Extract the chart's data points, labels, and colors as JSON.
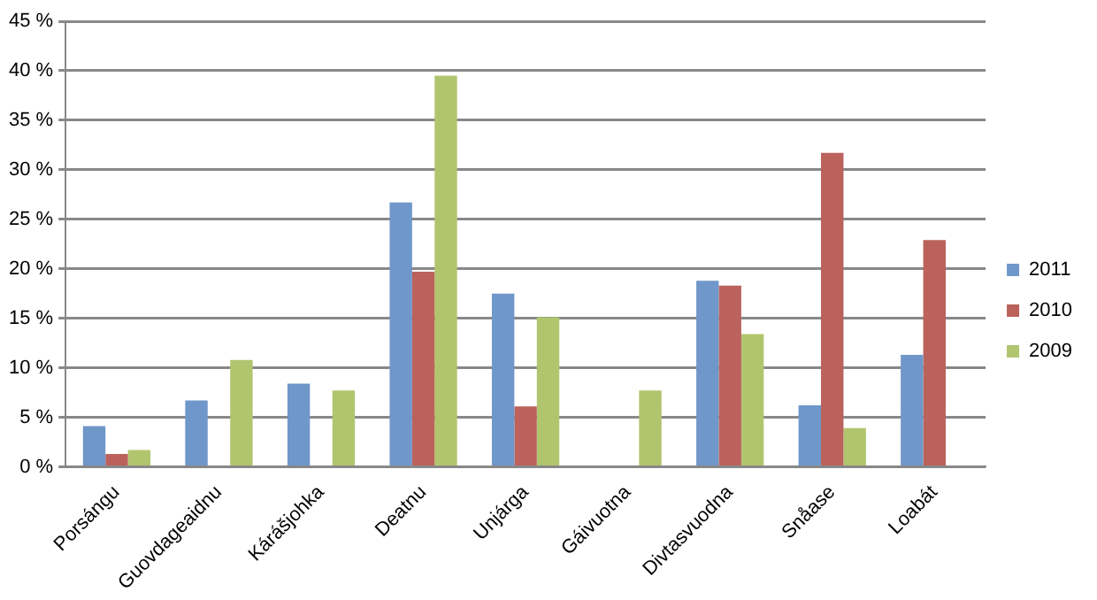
{
  "chart_data": {
    "type": "bar",
    "categories": [
      "Porsángu",
      "Guovdageaidnu",
      "Kárášjohka",
      "Deatnu",
      "Unjárga",
      "Gáivuotna",
      "Divtasvuodna",
      "Snåase",
      "Loabát"
    ],
    "series": [
      {
        "name": "2011",
        "color": "#7097c9",
        "values": [
          4.1,
          6.7,
          8.4,
          26.7,
          17.5,
          null,
          18.8,
          6.2,
          11.3
        ]
      },
      {
        "name": "2010",
        "color": "#bb625c",
        "values": [
          1.3,
          null,
          null,
          19.7,
          6.1,
          null,
          18.3,
          31.7,
          22.9
        ]
      },
      {
        "name": "2009",
        "color": "#b1c56f",
        "values": [
          1.7,
          10.8,
          7.7,
          39.5,
          15.1,
          7.7,
          13.4,
          3.9,
          null
        ]
      }
    ],
    "ylim": [
      0,
      45
    ],
    "yticks": [
      {
        "value": 0,
        "label": "0 %"
      },
      {
        "value": 5,
        "label": "5 %"
      },
      {
        "value": 10,
        "label": "10 %"
      },
      {
        "value": 15,
        "label": "15 %"
      },
      {
        "value": 20,
        "label": "20 %"
      },
      {
        "value": 25,
        "label": "25 %"
      },
      {
        "value": 30,
        "label": "30 %"
      },
      {
        "value": 35,
        "label": "35 %"
      },
      {
        "value": 40,
        "label": "40 %"
      },
      {
        "value": 45,
        "label": "45 %"
      }
    ],
    "grid": "y",
    "legend": "right"
  }
}
